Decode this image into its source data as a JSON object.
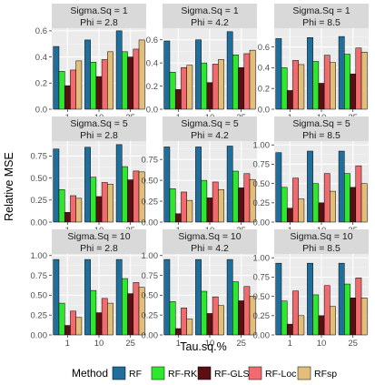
{
  "chart_data": {
    "type": "bar",
    "xlabel": "Tau.sq.%",
    "ylabel": "Relative MSE",
    "categories": [
      "1",
      "10",
      "25"
    ],
    "legend": {
      "title": "Method",
      "position": "bottom",
      "items": [
        {
          "name": "RF",
          "color": "#1F6E9C"
        },
        {
          "name": "RF-RK",
          "color": "#2EE82E"
        },
        {
          "name": "RF-GLS",
          "color": "#5C0F12"
        },
        {
          "name": "RF-Loc",
          "color": "#F06A6E"
        },
        {
          "name": "RFsp",
          "color": "#E2BE78"
        }
      ]
    },
    "grid": true,
    "panels": [
      {
        "strip1": "Sigma.Sq = 1",
        "strip2": "Phi = 2.8",
        "ylim": [
          0,
          0.62
        ],
        "yticks": [
          0,
          0.2,
          0.4,
          0.6
        ],
        "ytick_labels": [
          "0.0",
          "0.2",
          "0.4",
          "0.6"
        ],
        "values": [
          [
            0.48,
            0.29,
            0.18,
            0.3,
            0.37
          ],
          [
            0.53,
            0.36,
            0.25,
            0.38,
            0.44
          ],
          [
            0.6,
            0.44,
            0.4,
            0.46,
            0.53
          ]
        ]
      },
      {
        "strip1": "Sigma.Sq = 1",
        "strip2": "Phi = 4.2",
        "ylim": [
          0,
          0.7
        ],
        "yticks": [
          0,
          0.2,
          0.4,
          0.6
        ],
        "ytick_labels": [
          "0.0",
          "0.2",
          "0.4",
          "0.6"
        ],
        "values": [
          [
            0.59,
            0.32,
            0.17,
            0.36,
            0.38
          ],
          [
            0.6,
            0.4,
            0.23,
            0.39,
            0.43
          ],
          [
            0.67,
            0.47,
            0.36,
            0.48,
            0.51
          ]
        ]
      },
      {
        "strip1": "Sigma.Sq = 1",
        "strip2": "Phi = 8.5",
        "ylim": [
          0,
          0.78
        ],
        "yticks": [
          0,
          0.2,
          0.4,
          0.6
        ],
        "ytick_labels": [
          "0.0",
          "0.2",
          "0.4",
          "0.6"
        ],
        "values": [
          [
            0.68,
            0.4,
            0.18,
            0.47,
            0.43
          ],
          [
            0.69,
            0.46,
            0.25,
            0.52,
            0.45
          ],
          [
            0.7,
            0.53,
            0.34,
            0.59,
            0.55
          ]
        ]
      },
      {
        "strip1": "Sigma.Sq = 5",
        "strip2": "Phi = 2.8",
        "ylim": [
          0,
          0.92
        ],
        "yticks": [
          0,
          0.25,
          0.5,
          0.75
        ],
        "ytick_labels": [
          "0.00",
          "0.25",
          "0.50",
          "0.75"
        ],
        "values": [
          [
            0.83,
            0.37,
            0.11,
            0.3,
            0.27
          ],
          [
            0.85,
            0.51,
            0.29,
            0.45,
            0.43
          ],
          [
            0.88,
            0.63,
            0.48,
            0.58,
            0.57
          ]
        ]
      },
      {
        "strip1": "Sigma.Sq = 5",
        "strip2": "Phi = 4.2",
        "ylim": [
          0,
          0.97
        ],
        "yticks": [
          0,
          0.25,
          0.5,
          0.75
        ],
        "ytick_labels": [
          "0.00",
          "0.25",
          "0.50",
          "0.75"
        ],
        "values": [
          [
            0.9,
            0.4,
            0.1,
            0.36,
            0.26
          ],
          [
            0.9,
            0.5,
            0.29,
            0.48,
            0.39
          ],
          [
            0.91,
            0.61,
            0.41,
            0.58,
            0.51
          ]
        ]
      },
      {
        "strip1": "Sigma.Sq = 5",
        "strip2": "Phi = 8.5",
        "ylim": [
          0,
          1.05
        ],
        "yticks": [
          0,
          0.25,
          0.5,
          0.75,
          1.0
        ],
        "ytick_labels": [
          "0.00",
          "0.25",
          "0.50",
          "0.75",
          "1.00"
        ],
        "values": [
          [
            0.9,
            0.45,
            0.18,
            0.57,
            0.3
          ],
          [
            0.92,
            0.5,
            0.25,
            0.63,
            0.4
          ],
          [
            0.92,
            0.63,
            0.45,
            0.73,
            0.5
          ]
        ]
      },
      {
        "strip1": "Sigma.Sq = 10",
        "strip2": "Phi = 2.8",
        "ylim": [
          0,
          1.02
        ],
        "yticks": [
          0,
          0.25,
          0.5,
          0.75,
          1.0
        ],
        "ytick_labels": [
          "0.00",
          "0.25",
          "0.50",
          "0.75",
          "1.00"
        ],
        "values": [
          [
            0.95,
            0.4,
            0.12,
            0.3,
            0.22
          ],
          [
            0.95,
            0.56,
            0.28,
            0.46,
            0.4
          ],
          [
            0.95,
            0.71,
            0.52,
            0.66,
            0.6
          ]
        ]
      },
      {
        "strip1": "Sigma.Sq = 10",
        "strip2": "Phi = 4.2",
        "ylim": [
          0,
          1.02
        ],
        "yticks": [
          0,
          0.25,
          0.5,
          0.75,
          1.0
        ],
        "ytick_labels": [
          "0.00",
          "0.25",
          "0.50",
          "0.75",
          "1.00"
        ],
        "values": [
          [
            0.95,
            0.42,
            0.08,
            0.34,
            0.2
          ],
          [
            0.95,
            0.55,
            0.27,
            0.48,
            0.37
          ],
          [
            0.95,
            0.67,
            0.43,
            0.61,
            0.49
          ]
        ]
      },
      {
        "strip1": "Sigma.Sq = 10",
        "strip2": "Phi = 8.5",
        "ylim": [
          0,
          1.05
        ],
        "yticks": [
          0,
          0.25,
          0.5,
          0.75,
          1.0
        ],
        "ytick_labels": [
          "0.00",
          "0.25",
          "0.50",
          "0.75",
          "1.00"
        ],
        "values": [
          [
            0.93,
            0.44,
            0.14,
            0.57,
            0.25
          ],
          [
            0.93,
            0.52,
            0.25,
            0.64,
            0.37
          ],
          [
            0.93,
            0.66,
            0.48,
            0.74,
            0.48
          ]
        ]
      }
    ]
  }
}
